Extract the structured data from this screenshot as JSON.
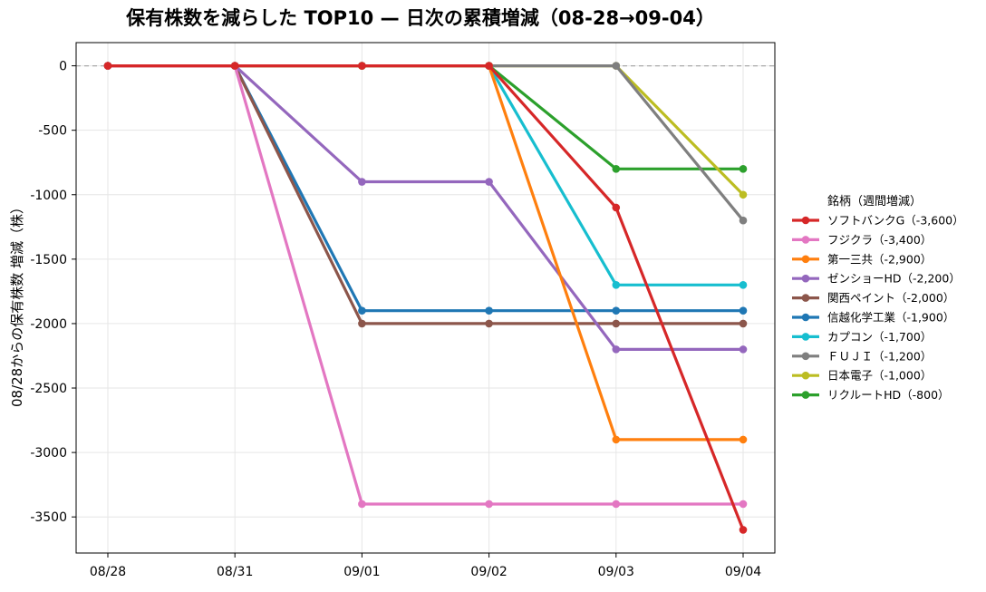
{
  "chart_data": {
    "type": "line",
    "title": "保有株数を減らした TOP10 — 日次の累積増減（08-28→09-04）",
    "xlabel": "",
    "ylabel": "08/28からの保有株数 増減（株）",
    "x": [
      "08/28",
      "08/31",
      "09/01",
      "09/02",
      "09/03",
      "09/04"
    ],
    "ylim": [
      -3780,
      180
    ],
    "yticks": [
      0,
      -500,
      -1000,
      -1500,
      -2000,
      -2500,
      -3000,
      -3500
    ],
    "grid": true,
    "zero_line": true,
    "legend": {
      "title": "銘柄（週間増減）",
      "placement": "right"
    },
    "series": [
      {
        "name": "ソフトバンクG（-3,600）",
        "color": "#d62728",
        "values": [
          0,
          0,
          0,
          0,
          -1100,
          -3600
        ]
      },
      {
        "name": "フジクラ（-3,400）",
        "color": "#e377c2",
        "values": [
          0,
          0,
          -3400,
          -3400,
          -3400,
          -3400
        ]
      },
      {
        "name": "第一三共（-2,900）",
        "color": "#ff7f0e",
        "values": [
          0,
          0,
          0,
          0,
          -2900,
          -2900
        ]
      },
      {
        "name": "ゼンショーHD（-2,200）",
        "color": "#9467bd",
        "values": [
          0,
          0,
          -900,
          -900,
          -2200,
          -2200
        ]
      },
      {
        "name": "関西ペイント（-2,000）",
        "color": "#8c564b",
        "values": [
          0,
          0,
          -2000,
          -2000,
          -2000,
          -2000
        ]
      },
      {
        "name": "信越化学工業（-1,900）",
        "color": "#1f77b4",
        "values": [
          0,
          0,
          -1900,
          -1900,
          -1900,
          -1900
        ]
      },
      {
        "name": "カプコン（-1,700）",
        "color": "#17becf",
        "values": [
          0,
          0,
          0,
          0,
          -1700,
          -1700
        ]
      },
      {
        "name": "ＦＵＪＩ（-1,200）",
        "color": "#7f7f7f",
        "values": [
          0,
          0,
          0,
          0,
          0,
          -1200
        ]
      },
      {
        "name": "日本電子（-1,000）",
        "color": "#bcbd22",
        "values": [
          0,
          0,
          0,
          0,
          0,
          -1000
        ]
      },
      {
        "name": "リクルートHD（-800）",
        "color": "#2ca02c",
        "values": [
          0,
          0,
          0,
          0,
          -800,
          -800
        ]
      }
    ]
  }
}
